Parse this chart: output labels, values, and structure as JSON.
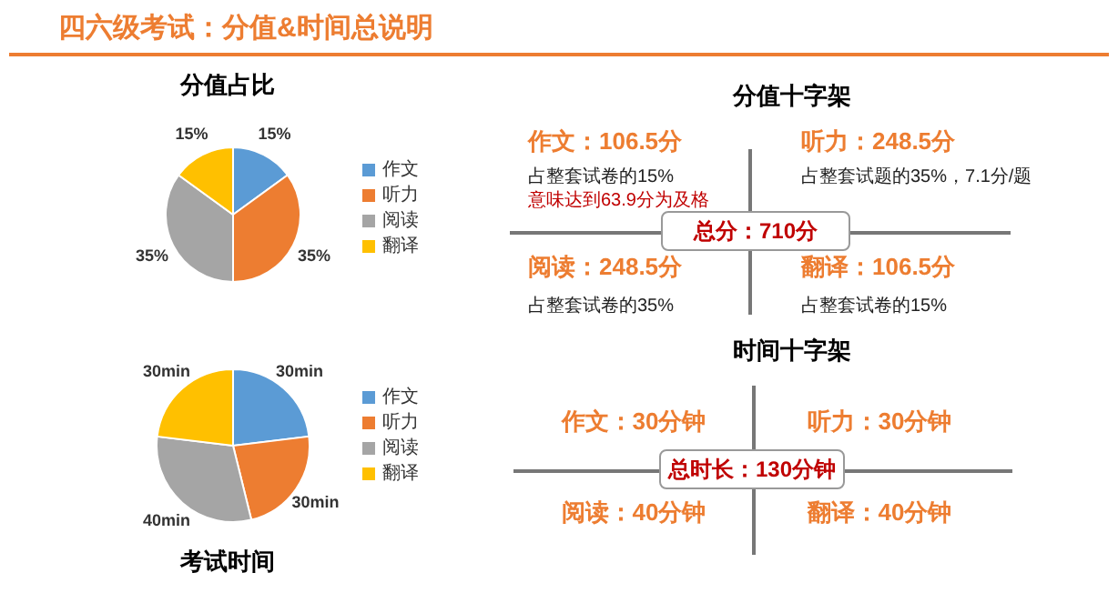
{
  "chart_data": [
    {
      "type": "other",
      "title": "四六级考试：分值&时间总说明"
    },
    {
      "type": "pie",
      "title": "分值占比",
      "categories": [
        "作文",
        "听力",
        "阅读",
        "翻译"
      ],
      "values": [
        15,
        35,
        35,
        15
      ],
      "colors": [
        "#5b9bd5",
        "#ed7d31",
        "#a5a5a5",
        "#ffc000"
      ],
      "value_labels": [
        "15%",
        "35%",
        "35%",
        "15%"
      ],
      "legend": "right"
    },
    {
      "type": "pie",
      "title": "考试时间",
      "categories": [
        "作文",
        "听力",
        "阅读",
        "翻译"
      ],
      "values": [
        30,
        30,
        40,
        30
      ],
      "colors": [
        "#5b9bd5",
        "#ed7d31",
        "#a5a5a5",
        "#ffc000"
      ],
      "value_labels": [
        "30min",
        "30min",
        "40min",
        "30min"
      ],
      "legend": "right"
    },
    {
      "type": "other",
      "title": "分值十字架",
      "annotations": [
        "作文：106.5分",
        "占整套试卷的15%",
        "意味达到63.9分为及格",
        "听力：248.5分",
        "占整套试题的35%，7.1分/题",
        "总分：710分",
        "阅读：248.5分",
        "占整套试卷的35%",
        "翻译：106.5分",
        "占整套试卷的15%"
      ]
    },
    {
      "type": "other",
      "title": "时间十字架",
      "annotations": [
        "作文：30分钟",
        "听力：30分钟",
        "总时长：130分钟",
        "阅读：40分钟",
        "翻译：40分钟"
      ]
    }
  ]
}
